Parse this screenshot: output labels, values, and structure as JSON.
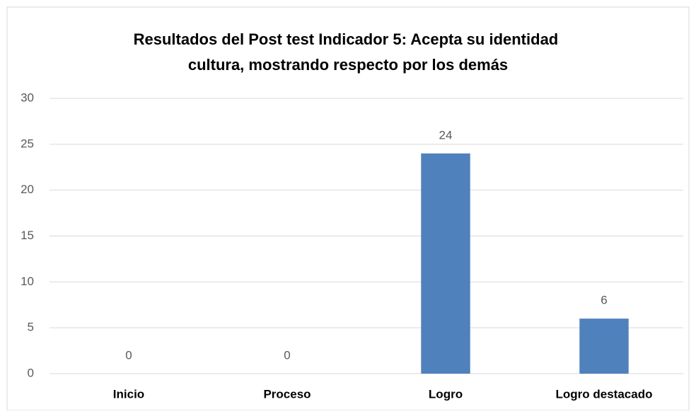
{
  "chart_data": {
    "type": "bar",
    "title": "Resultados del Post test Indicador 5: Acepta su identidad cultura, mostrando respecto por los demás",
    "categories": [
      "Inicio",
      "Proceso",
      "Logro",
      "Logro destacado"
    ],
    "values": [
      0,
      0,
      24,
      6
    ],
    "color": "#4f81bd",
    "ylim": [
      0,
      30
    ],
    "yticks": [
      0,
      5,
      10,
      15,
      20,
      25,
      30
    ],
    "grid": true,
    "data_labels": true
  }
}
